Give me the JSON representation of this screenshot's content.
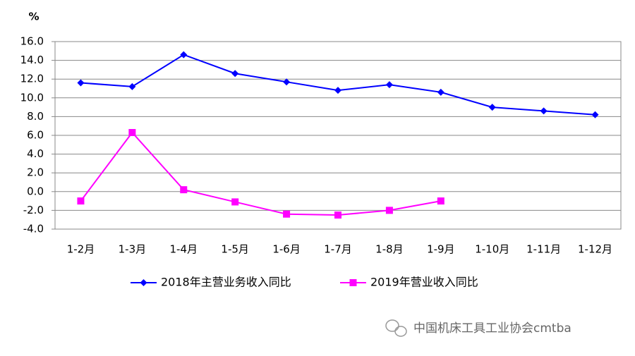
{
  "chart_data": {
    "type": "line",
    "y_unit": "%",
    "categories": [
      "1-2月",
      "1-3月",
      "1-4月",
      "1-5月",
      "1-6月",
      "1-7月",
      "1-8月",
      "1-9月",
      "1-10月",
      "1-11月",
      "1-12月"
    ],
    "series": [
      {
        "name": "2018年主营业务收入同比",
        "color": "#0000ff",
        "marker": "diamond",
        "values": [
          11.6,
          11.2,
          14.6,
          12.6,
          11.7,
          10.8,
          11.4,
          10.6,
          9.0,
          8.6,
          8.2
        ]
      },
      {
        "name": "2019年营业收入同比",
        "color": "#ff00ff",
        "marker": "square",
        "values": [
          -1.0,
          6.3,
          0.2,
          -1.1,
          -2.4,
          -2.5,
          -2.0,
          -1.0,
          null,
          null,
          null
        ]
      }
    ],
    "ylim": [
      -4,
      16
    ],
    "yticks": [
      {
        "value": -4,
        "label": "-4.0"
      },
      {
        "value": -2,
        "label": "-2.0"
      },
      {
        "value": 0,
        "label": "0.0"
      },
      {
        "value": 2,
        "label": "2.0"
      },
      {
        "value": 4,
        "label": "4.0"
      },
      {
        "value": 6,
        "label": "6.0"
      },
      {
        "value": 8,
        "label": "8.0"
      },
      {
        "value": 10,
        "label": "10.0"
      },
      {
        "value": 12,
        "label": "12.0"
      },
      {
        "value": 14,
        "label": "14.0"
      },
      {
        "value": 16,
        "label": "16.0"
      }
    ],
    "grid": true,
    "legend": "bottom",
    "watermark": "中国机床工具工业协会cmtba"
  }
}
